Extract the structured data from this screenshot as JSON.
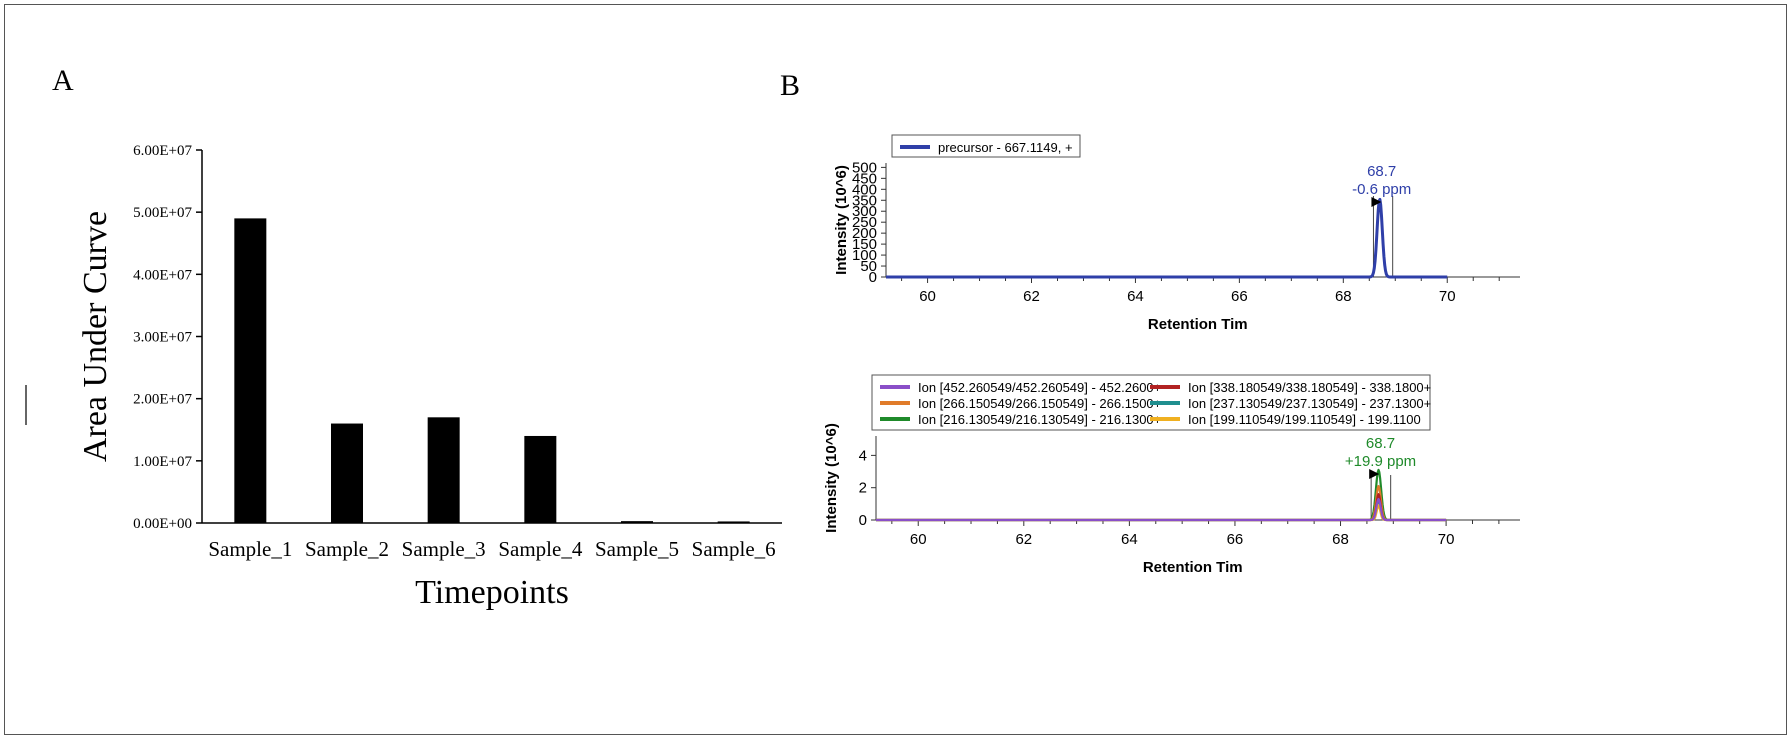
{
  "panel_labels": [
    "A",
    "B"
  ],
  "chart_data": [
    {
      "type": "bar",
      "panel": "A",
      "categories": [
        "Sample_1",
        "Sample_2",
        "Sample_3",
        "Sample_4",
        "Sample_5",
        "Sample_6"
      ],
      "values": [
        49000000,
        16000000,
        17000000,
        14000000,
        300000,
        250000
      ],
      "xlabel": "Timepoints",
      "ylabel": "Area Under Curve",
      "ylim": [
        0,
        60000000
      ],
      "yticks": [
        0,
        10000000,
        20000000,
        30000000,
        40000000,
        50000000,
        60000000
      ],
      "ytick_labels": [
        "0.00E+00",
        "1.00E+07",
        "2.00E+07",
        "3.00E+07",
        "4.00E+07",
        "5.00E+07",
        "6.00E+07"
      ],
      "bar_color": "#000000",
      "grid": false
    },
    {
      "type": "line",
      "panel": "B-top",
      "xlabel": "Retention Tim",
      "ylabel": "Intensity (10^6)",
      "xlim": [
        59.2,
        71.4
      ],
      "ylim": [
        0,
        520
      ],
      "xticks": [
        60,
        62,
        64,
        66,
        68,
        70
      ],
      "yticks": [
        0,
        50,
        100,
        150,
        200,
        250,
        300,
        350,
        400,
        450,
        500
      ],
      "ytick_labels": [
        "0",
        "50",
        "100",
        "150",
        "200",
        "250",
        "300",
        "350",
        "400",
        "450",
        "500"
      ],
      "legend": [
        {
          "name": "precursor - 667.1149, +",
          "color": "#2f3fa8"
        }
      ],
      "series": [
        {
          "name": "precursor - 667.1149, +",
          "color": "#2f3fa8",
          "peak_rt": 68.7,
          "peak_height": 355,
          "peak_width": 0.05,
          "trace_end": 70.0
        }
      ],
      "boundaries": [
        68.58,
        68.95
      ],
      "annotation": {
        "rt_label": "68.7",
        "ppm_label": "-0.6 ppm",
        "color": "#2f3fa8"
      },
      "grid": false,
      "legend_position": "top-left"
    },
    {
      "type": "line",
      "panel": "B-bottom",
      "xlabel": "Retention Tim",
      "ylabel": "Intensity (10^6)",
      "xlim": [
        59.2,
        71.4
      ],
      "ylim": [
        0,
        5.2
      ],
      "xticks": [
        60,
        62,
        64,
        66,
        68,
        70
      ],
      "yticks": [
        0,
        2,
        4
      ],
      "ytick_labels": [
        "0",
        "2",
        "4"
      ],
      "legend": [
        {
          "name": "Ion [452.260549/452.260549] - 452.2600+",
          "color": "#8a4fc8"
        },
        {
          "name": "Ion [338.180549/338.180549] - 338.1800+",
          "color": "#b22222"
        },
        {
          "name": "Ion [266.150549/266.150549] - 266.1500+",
          "color": "#e07b2a"
        },
        {
          "name": "Ion [237.130549/237.130549] - 237.1300+",
          "color": "#1f8f8f"
        },
        {
          "name": "Ion [216.130549/216.130549] - 216.1300+",
          "color": "#1f8a2a"
        },
        {
          "name": "Ion [199.110549/199.110549] - 199.1100",
          "color": "#f0b020"
        }
      ],
      "series": [
        {
          "name": "Ion [216.130549/216.130549] - 216.1300+",
          "color": "#1f8a2a",
          "peak_rt": 68.72,
          "peak_height": 3.1,
          "peak_width": 0.05,
          "trace_end": 70.0
        },
        {
          "name": "Ion [266.150549/266.150549] - 266.1500+",
          "color": "#e07b2a",
          "peak_rt": 68.72,
          "peak_height": 2.1,
          "peak_width": 0.045,
          "trace_end": 70.0
        },
        {
          "name": "Ion [338.180549/338.180549] - 338.1800+",
          "color": "#b22222",
          "peak_rt": 68.72,
          "peak_height": 1.6,
          "peak_width": 0.04,
          "trace_end": 70.0
        },
        {
          "name": "Ion [237.130549/237.130549] - 237.1300+",
          "color": "#1f8f8f",
          "peak_rt": 68.72,
          "peak_height": 1.2,
          "peak_width": 0.04,
          "trace_end": 70.0
        },
        {
          "name": "Ion [199.110549/199.110549] - 199.1100",
          "color": "#f0b020",
          "peak_rt": 68.72,
          "peak_height": 0.9,
          "peak_width": 0.035,
          "trace_end": 70.0
        },
        {
          "name": "Ion [452.260549/452.260549] - 452.2600+",
          "color": "#8a4fc8",
          "peak_rt": 68.72,
          "peak_height": 1.3,
          "peak_width": 0.04,
          "trace_end": 70.0
        }
      ],
      "boundaries": [
        68.58,
        68.95
      ],
      "annotation": {
        "rt_label": "68.7",
        "ppm_label": "+19.9 ppm",
        "color": "#1f8a2a"
      },
      "grid": false,
      "legend_position": "top-left"
    }
  ]
}
